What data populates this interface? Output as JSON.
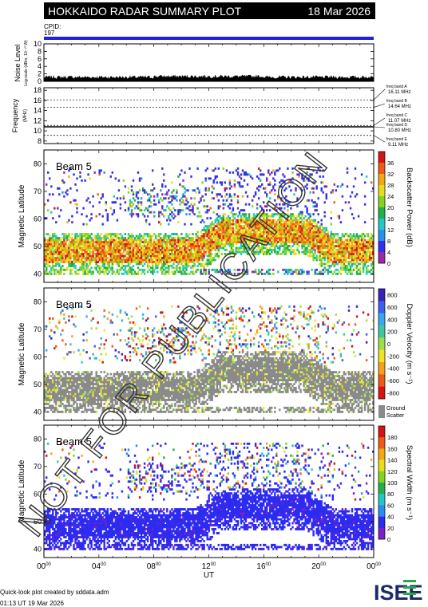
{
  "header": {
    "title": "HOKKAIDO RADAR SUMMARY PLOT",
    "date": "18 Mar 2026",
    "cpid_label": "CPID:",
    "cpid_value": "197",
    "watermark": "NOT FOR PUBLICATION"
  },
  "colors": {
    "header_bg": "#000000",
    "cpid_bar": "#1f1fe6",
    "ground_scatter": "#8a8a8a"
  },
  "footer": {
    "credit": "Quick-look plot created by sddata.adm",
    "timestamp": "01:13 UT 19 Mar 2026",
    "logo": "ISEE"
  },
  "chart_data": [
    {
      "type": "line",
      "panel": "noise",
      "ylabel": "Noise Level",
      "ylabel_sub": "Log-scale (dBm; 10⁻¹⁰ W)",
      "yticks": [
        "0",
        "2",
        "4",
        "6",
        "8",
        "10"
      ],
      "ylim": [
        0,
        10
      ],
      "xlim": [
        0,
        24
      ],
      "values_approx": 1.0
    },
    {
      "type": "line",
      "panel": "frequency",
      "ylabel": "Frequency",
      "ylabel_unit": "(MHz)",
      "yticks": [
        "8",
        "10",
        "12",
        "14",
        "16",
        "18"
      ],
      "ylim": [
        7.5,
        18.5
      ],
      "xlim": [
        0,
        24
      ],
      "freq_bands": [
        {
          "label": "freq band A",
          "value_text": "16.11 MHz",
          "mhz": 16.11
        },
        {
          "label": "freq band B",
          "value_text": "14.64 MHz",
          "mhz": 14.64
        },
        {
          "label": "freq band C",
          "value_text": "11.07 MHz",
          "mhz": 11.07
        },
        {
          "label": "freq band D",
          "value_text": "10.80 MHz",
          "mhz": 10.8
        },
        {
          "label": "freq band E",
          "value_text": "9.11 MHz",
          "mhz": 9.11
        }
      ],
      "operating_freq_mhz": 10.8
    },
    {
      "type": "heatmap",
      "panel": "power",
      "beam_label": "Beam  5",
      "ylabel": "Magnetic Latitude",
      "yticks": [
        "40",
        "50",
        "60",
        "70",
        "80"
      ],
      "ylim": [
        37,
        85
      ],
      "xlim": [
        0,
        24
      ],
      "colorbar_label": "Backscatter Power (dB)",
      "colorbar_ticks": [
        "0",
        "4",
        "8",
        "12",
        "16",
        "20",
        "24",
        "28",
        "32",
        "36"
      ],
      "colorbar_range": [
        0,
        36
      ]
    },
    {
      "type": "heatmap",
      "panel": "velocity",
      "beam_label": "Beam  5",
      "ylabel": "Magnetic Latitude",
      "yticks": [
        "40",
        "50",
        "60",
        "70",
        "80"
      ],
      "ylim": [
        37,
        85
      ],
      "xlim": [
        0,
        24
      ],
      "colorbar_label": "Doppler Velocity (m s⁻¹)",
      "colorbar_ticks": [
        "800",
        "600",
        "400",
        "200",
        "0",
        "-200",
        "-400",
        "-600",
        "-800"
      ],
      "colorbar_range": [
        -800,
        800
      ],
      "ground_scatter_label": "Ground Scatter"
    },
    {
      "type": "heatmap",
      "panel": "width",
      "beam_label": "Beam  5",
      "ylabel": "Magnetic Latitude",
      "yticks": [
        "40",
        "50",
        "60",
        "70",
        "80"
      ],
      "ylim": [
        37,
        85
      ],
      "xlim": [
        0,
        24
      ],
      "colorbar_label": "Spectral Width (m s⁻¹)",
      "colorbar_ticks": [
        "0",
        "20",
        "40",
        "60",
        "80",
        "100",
        "120",
        "140",
        "160",
        "180"
      ],
      "colorbar_range": [
        0,
        180
      ]
    }
  ],
  "x_axis": {
    "label": "UT",
    "ticks": [
      {
        "h": "00",
        "m": "00"
      },
      {
        "h": "04",
        "m": "00"
      },
      {
        "h": "08",
        "m": "00"
      },
      {
        "h": "12",
        "m": "00"
      },
      {
        "h": "16",
        "m": "00"
      },
      {
        "h": "20",
        "m": "00"
      },
      {
        "h": "00",
        "m": "00"
      }
    ]
  }
}
